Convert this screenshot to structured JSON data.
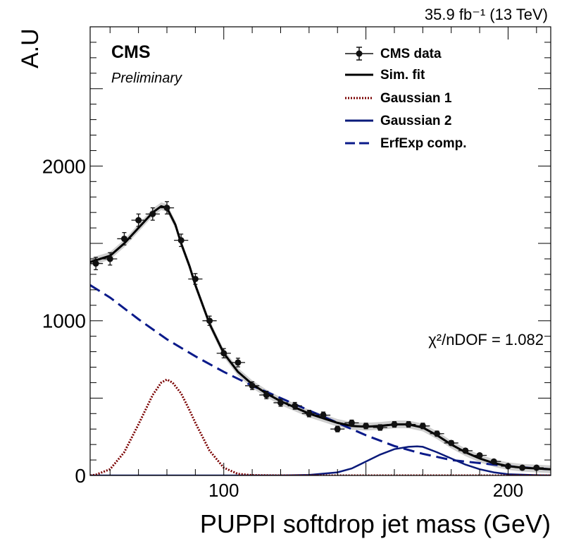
{
  "chart_data": {
    "type": "scatter",
    "header_right": "35.9 fb⁻¹ (13 TeV)",
    "brand": "CMS",
    "subtitle": "Preliminary",
    "xlabel": "PUPPI softdrop jet mass (GeV)",
    "ylabel": "A.U",
    "xlim": [
      53,
      215
    ],
    "ylim": [
      0,
      2900
    ],
    "xticks": [
      100,
      200
    ],
    "yticks": [
      0,
      1000,
      2000
    ],
    "annotation": "χ²/nDOF = 1.082",
    "legend_position": "top-right",
    "legend": [
      "CMS data",
      "Sim. fit",
      "Gaussian 1",
      "Gaussian 2",
      "ErfExp comp."
    ],
    "colors": {
      "data": "#111111",
      "fit": "#000000",
      "gauss1": "#7a0000",
      "gauss2": "#0a1a7a",
      "erfexp": "#0a1a8a",
      "band": "#bbbbbb"
    },
    "data_points": {
      "x": [
        55,
        60,
        65,
        70,
        75,
        80,
        85,
        90,
        95,
        100,
        105,
        110,
        115,
        120,
        125,
        130,
        135,
        140,
        145,
        150,
        155,
        160,
        165,
        170,
        175,
        180,
        185,
        190,
        195,
        200,
        205,
        210
      ],
      "y": [
        1370,
        1400,
        1530,
        1650,
        1690,
        1730,
        1520,
        1270,
        1000,
        790,
        730,
        580,
        520,
        470,
        450,
        400,
        390,
        300,
        340,
        320,
        310,
        330,
        330,
        320,
        270,
        210,
        160,
        130,
        90,
        60,
        50,
        50
      ],
      "yerr": [
        40,
        40,
        40,
        40,
        40,
        40,
        40,
        35,
        30,
        30,
        28,
        25,
        24,
        23,
        22,
        21,
        20,
        18,
        18,
        18,
        18,
        18,
        18,
        18,
        17,
        15,
        14,
        12,
        10,
        9,
        8,
        8
      ],
      "xerr": 2.5
    },
    "series": [
      {
        "name": "Sim. fit",
        "x": [
          53,
          60,
          65,
          70,
          75,
          78,
          80,
          83,
          85,
          88,
          90,
          95,
          100,
          105,
          110,
          115,
          120,
          125,
          130,
          135,
          140,
          145,
          150,
          155,
          160,
          165,
          170,
          175,
          180,
          185,
          190,
          195,
          200,
          205,
          210,
          215
        ],
        "y": [
          1380,
          1420,
          1500,
          1600,
          1700,
          1740,
          1730,
          1620,
          1500,
          1350,
          1230,
          980,
          790,
          670,
          590,
          530,
          480,
          440,
          400,
          370,
          340,
          320,
          315,
          320,
          330,
          330,
          310,
          260,
          200,
          150,
          110,
          80,
          60,
          50,
          45,
          40
        ]
      },
      {
        "name": "Gaussian 1",
        "x": [
          53,
          55,
          60,
          65,
          70,
          75,
          78,
          80,
          82,
          85,
          88,
          90,
          95,
          100,
          105,
          110,
          120,
          215
        ],
        "y": [
          0,
          5,
          40,
          150,
          330,
          520,
          600,
          620,
          600,
          530,
          420,
          340,
          160,
          50,
          10,
          2,
          0,
          0
        ]
      },
      {
        "name": "Gaussian 2",
        "x": [
          53,
          120,
          130,
          140,
          145,
          150,
          155,
          160,
          165,
          168,
          170,
          175,
          180,
          185,
          190,
          195,
          200,
          210,
          215
        ],
        "y": [
          0,
          0,
          3,
          20,
          45,
          90,
          135,
          170,
          185,
          188,
          185,
          150,
          110,
          70,
          40,
          20,
          8,
          2,
          0
        ]
      },
      {
        "name": "ErfExp comp.",
        "x": [
          53,
          60,
          70,
          80,
          90,
          100,
          110,
          120,
          130,
          140,
          150,
          160,
          170,
          180,
          190,
          200,
          210,
          215
        ],
        "y": [
          1230,
          1150,
          1010,
          880,
          770,
          670,
          580,
          500,
          420,
          340,
          260,
          190,
          140,
          100,
          80,
          60,
          45,
          40
        ]
      }
    ]
  }
}
